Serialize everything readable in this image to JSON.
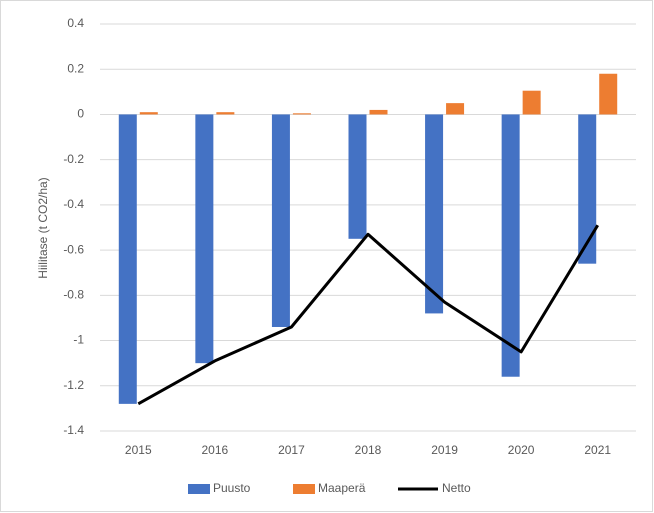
{
  "chart_data": {
    "type": "bar",
    "y_label": "Hiilitase (t CO2/ha)",
    "categories": [
      "2015",
      "2016",
      "2017",
      "2018",
      "2019",
      "2020",
      "2021"
    ],
    "series": [
      {
        "name": "Puusto",
        "type": "bar",
        "color": "#4472c4",
        "values": [
          -1.28,
          -1.1,
          -0.94,
          -0.55,
          -0.88,
          -1.16,
          -0.66
        ]
      },
      {
        "name": "Maaperä",
        "type": "bar",
        "color": "#ed7d31",
        "values": [
          0.01,
          0.01,
          0.005,
          0.02,
          0.05,
          0.105,
          0.18
        ]
      },
      {
        "name": "Netto",
        "type": "line",
        "color": "#000000",
        "values": [
          -1.28,
          -1.09,
          -0.94,
          -0.53,
          -0.83,
          -1.05,
          -0.49
        ]
      }
    ],
    "ylim": [
      -1.4,
      0.4
    ],
    "yticks": [
      -1.4,
      -1.2,
      -1,
      -0.8,
      -0.6,
      -0.4,
      -0.2,
      0,
      0.2,
      0.4
    ],
    "grid": true,
    "legend": "bottom"
  }
}
